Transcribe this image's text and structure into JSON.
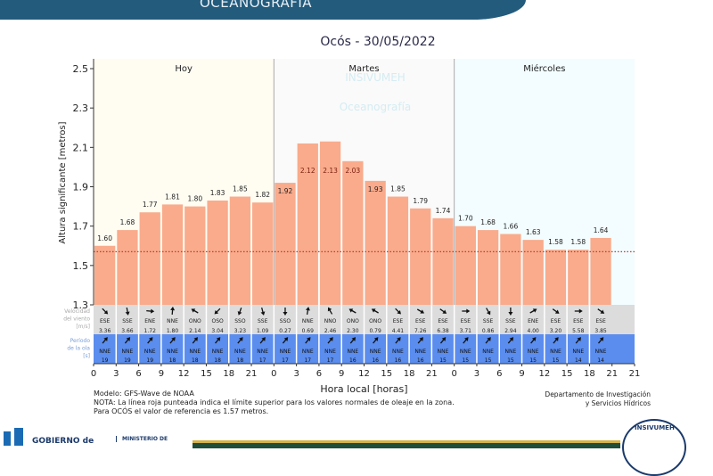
{
  "header": {
    "section": "OCEANOGRAFÍA",
    "title": "Ocós  -  30/05/2022"
  },
  "watermark": {
    "line1": "INSIVUMEH",
    "line2": "Oceanografía"
  },
  "chart_data": {
    "type": "bar",
    "ylabel": "Altura significante [metros]",
    "xlabel": "Hora local [horas]",
    "ylim": [
      1.3,
      2.55
    ],
    "yticks": [
      "1.3",
      "1.5",
      "1.7",
      "1.9",
      "2.1",
      "2.3",
      "2.5"
    ],
    "ytick_values": [
      1.3,
      1.5,
      1.7,
      1.9,
      2.1,
      2.3,
      2.5
    ],
    "days": [
      "Hoy",
      "Martes",
      "Miércoles"
    ],
    "day_colors": [
      "#fffdf2",
      "#fafafa",
      "#f3fdff"
    ],
    "hours": [
      "0",
      "3",
      "6",
      "9",
      "12",
      "15",
      "18",
      "21",
      "0",
      "3",
      "6",
      "9",
      "12",
      "15",
      "18",
      "21",
      "0",
      "3",
      "6",
      "9",
      "12",
      "15",
      "18",
      "21"
    ],
    "end_tick": "21",
    "values": [
      1.6,
      1.68,
      1.77,
      1.81,
      1.8,
      1.83,
      1.85,
      1.82,
      1.92,
      2.12,
      2.13,
      2.03,
      1.93,
      1.85,
      1.79,
      1.74,
      1.7,
      1.68,
      1.66,
      1.63,
      1.58,
      1.58,
      1.64
    ],
    "labels": [
      "1.60",
      "1.68",
      "1.77",
      "1.81",
      "1.80",
      "1.83",
      "1.85",
      "1.82",
      "1.92",
      "2.12",
      "2.13",
      "2.03",
      "1.93",
      "1.85",
      "1.79",
      "1.74",
      "1.70",
      "1.68",
      "1.66",
      "1.63",
      "1.58",
      "1.58",
      "1.64"
    ],
    "bar_color": "#f9ab8c",
    "reference_line": {
      "value": 1.57,
      "color": "#c0392b",
      "style": "dotted"
    },
    "wind": {
      "label": [
        "Velocidad",
        "del viento",
        "[m/s]"
      ],
      "directions": [
        "ESE",
        "SSE",
        "ENE",
        "NNE",
        "ONO",
        "OSO",
        "SSO",
        "SSE",
        "SSO",
        "NNE",
        "NNO",
        "ONO",
        "ONO",
        "ESE",
        "ESE",
        "ESE",
        "ESE",
        "SSE",
        "SSE",
        "ENE",
        "ESE",
        "ESE",
        "ESE"
      ],
      "speeds": [
        "3.36",
        "3.66",
        "1.72",
        "1.80",
        "2.14",
        "3.04",
        "3.23",
        "1.09",
        "0.27",
        "0.69",
        "2.46",
        "2.30",
        "0.79",
        "4.41",
        "7.26",
        "6.38",
        "3.71",
        "0.86",
        "2.94",
        "4.00",
        "3.20",
        "5.58",
        "3.85"
      ],
      "arrow_angles": [
        135,
        170,
        95,
        5,
        300,
        225,
        200,
        165,
        180,
        10,
        330,
        300,
        300,
        135,
        120,
        125,
        90,
        150,
        180,
        60,
        125,
        90,
        125
      ],
      "row_color": "#dcdcdc"
    },
    "waves": {
      "label": [
        "Período",
        "de la ola",
        "[s]"
      ],
      "directions": [
        "NNE",
        "NNE",
        "NNE",
        "NNE",
        "NNE",
        "NNE",
        "NNE",
        "NNE",
        "NNE",
        "NNE",
        "NNE",
        "NNE",
        "NNE",
        "NNE",
        "NNE",
        "NNE",
        "NNE",
        "NNE",
        "NNE",
        "NNE",
        "NNE",
        "NNE",
        "NNE"
      ],
      "periods": [
        "19",
        "19",
        "19",
        "18",
        "18",
        "18",
        "18",
        "17",
        "17",
        "17",
        "17",
        "16",
        "16",
        "16",
        "16",
        "15",
        "15",
        "15",
        "15",
        "15",
        "15",
        "14",
        "14"
      ],
      "row_color": "#5b8dee"
    }
  },
  "notes": {
    "model": "Modelo: GFS-Wave de NOAA",
    "note": "NOTA: La línea roja punteada indica el límite superior para los valores normales de oleaje en la zona.",
    "reference": "Para OCÓS el valor de referencia es 1.57 metros."
  },
  "department": {
    "line1": "Departamento de Investigación",
    "line2": "y Servicios Hídricos"
  },
  "footer": {
    "gobierno": "GOBIERNO de",
    "ministerio": "MINISTERIO DE",
    "seal": "INSIVUMEH"
  }
}
